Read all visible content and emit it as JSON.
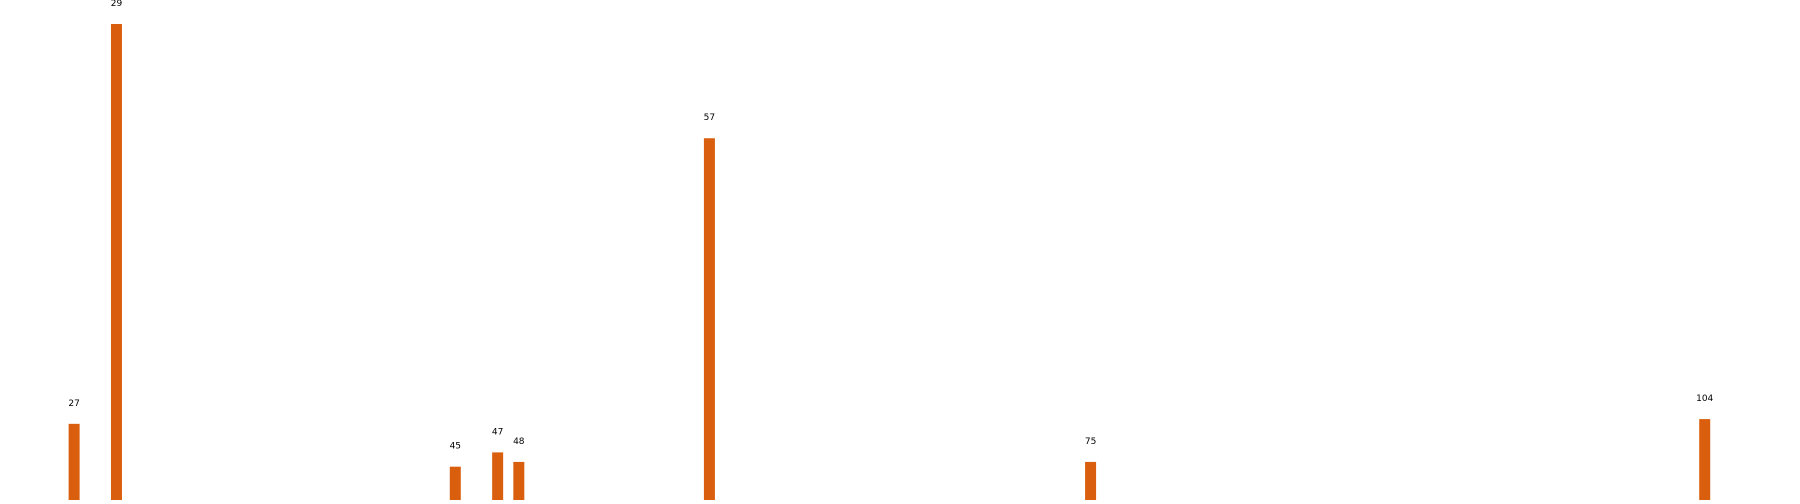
{
  "chart_data": {
    "type": "bar",
    "x": [
      27,
      29,
      45,
      47,
      48,
      57,
      75,
      104
    ],
    "values": [
      16,
      100,
      7,
      10,
      8,
      76,
      8,
      17
    ],
    "data_labels": [
      "27",
      "29",
      "45",
      "47",
      "48",
      "57",
      "75",
      "104"
    ],
    "title": "",
    "xlabel": "",
    "ylabel": "",
    "xlim": [
      23.5,
      108.5
    ],
    "ylim": [
      0,
      100
    ],
    "grid": false,
    "legend": "none",
    "bar_color": "#d95f0e"
  }
}
